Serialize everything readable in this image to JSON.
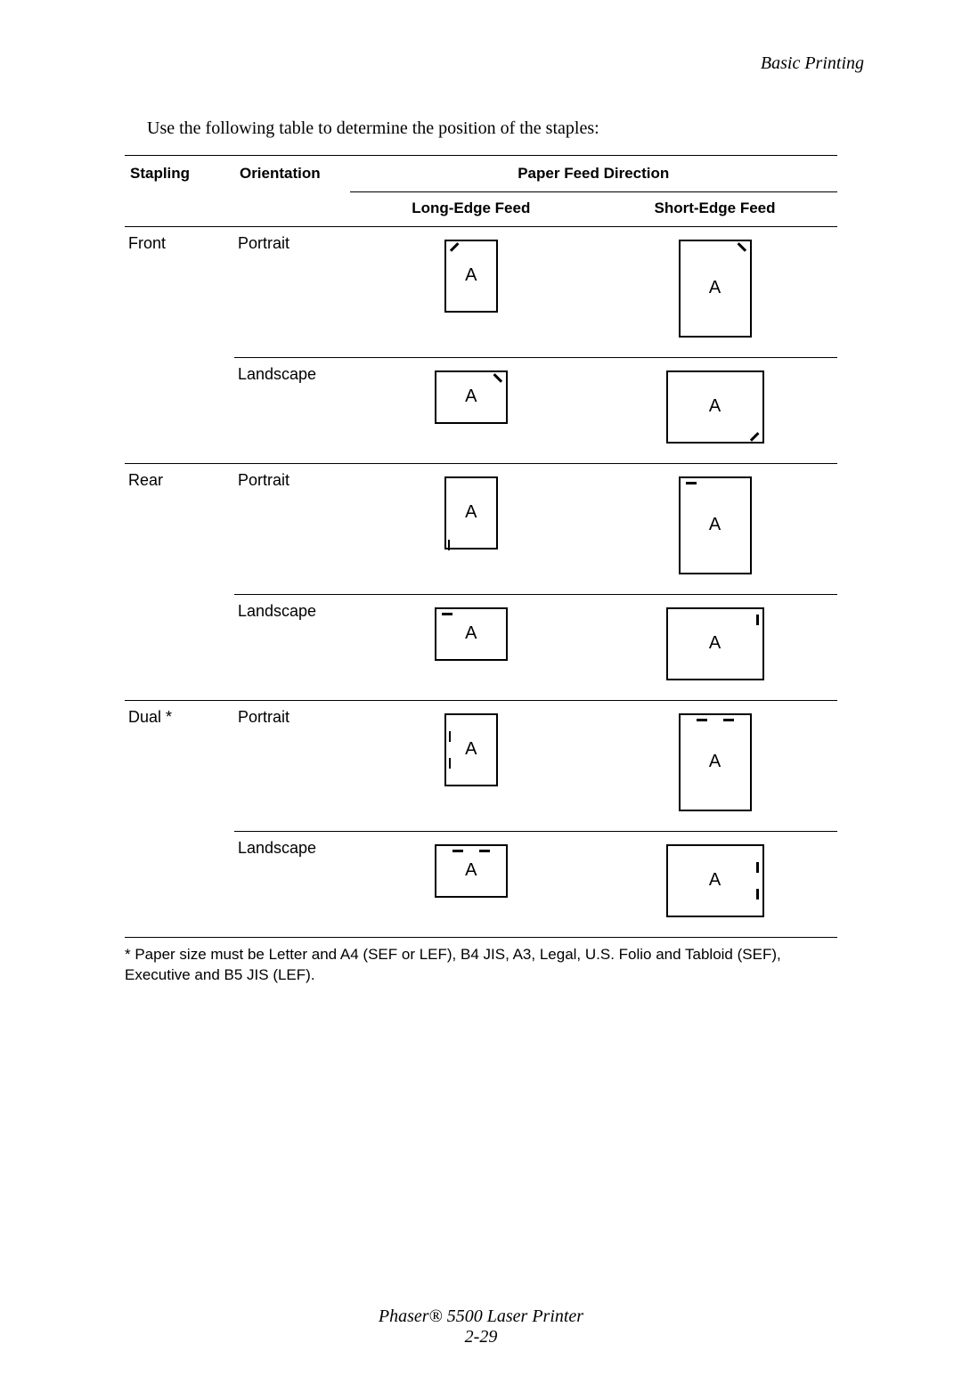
{
  "header": "Basic Printing",
  "intro": "Use the following table to determine the position of the staples:",
  "table": {
    "headers": {
      "stapling": "Stapling",
      "orientation": "Orientation",
      "pfd": "Paper Feed Direction",
      "long": "Long-Edge Feed",
      "short": "Short-Edge Feed"
    },
    "glyph": "A",
    "rows": [
      {
        "stapling": "Front",
        "orientation": "Portrait",
        "long": {
          "shape": "portrait-s",
          "staples": [
            {
              "type": "diag",
              "pos": "tl",
              "angle": -45
            }
          ]
        },
        "short": {
          "shape": "portrait-l",
          "staples": [
            {
              "type": "diag",
              "pos": "tr",
              "angle": 45
            }
          ]
        }
      },
      {
        "stapling": "",
        "orientation": "Landscape",
        "long": {
          "shape": "landscape-s",
          "staples": [
            {
              "type": "diag",
              "pos": "tr",
              "angle": 45
            }
          ]
        },
        "short": {
          "shape": "landscape-l",
          "staples": [
            {
              "type": "diag",
              "pos": "br",
              "angle": -45
            }
          ]
        }
      },
      {
        "stapling": "Rear",
        "orientation": "Portrait",
        "long": {
          "shape": "portrait-s",
          "staples": [
            {
              "type": "v",
              "pos": "bl-out"
            }
          ]
        },
        "short": {
          "shape": "portrait-l",
          "staples": [
            {
              "type": "h",
              "pos": "tl-in"
            }
          ]
        }
      },
      {
        "stapling": "",
        "orientation": "Landscape",
        "long": {
          "shape": "landscape-s",
          "staples": [
            {
              "type": "h",
              "pos": "tl-in"
            }
          ]
        },
        "short": {
          "shape": "landscape-l",
          "staples": [
            {
              "type": "v",
              "pos": "tr-in"
            }
          ]
        }
      },
      {
        "stapling": "Dual *",
        "orientation": "Portrait",
        "long": {
          "shape": "portrait-s",
          "staples": [
            {
              "type": "v",
              "pos": "l-upper"
            },
            {
              "type": "v",
              "pos": "l-lower"
            }
          ]
        },
        "short": {
          "shape": "portrait-l",
          "staples": [
            {
              "type": "h",
              "pos": "t-left"
            },
            {
              "type": "h",
              "pos": "t-right"
            }
          ]
        }
      },
      {
        "stapling": "",
        "orientation": "Landscape",
        "long": {
          "shape": "landscape-s",
          "staples": [
            {
              "type": "h",
              "pos": "t-left"
            },
            {
              "type": "h",
              "pos": "t-right"
            }
          ]
        },
        "short": {
          "shape": "landscape-l",
          "staples": [
            {
              "type": "v",
              "pos": "r-upper"
            },
            {
              "type": "v",
              "pos": "r-lower"
            }
          ]
        }
      }
    ]
  },
  "footnote": "* Paper size must be Letter and A4 (SEF or LEF), B4 JIS, A3, Legal, U.S. Folio and Tabloid (SEF), Executive and B5 JIS (LEF).",
  "footer_line1": "Phaser® 5500 Laser Printer",
  "footer_line2": "2-29"
}
